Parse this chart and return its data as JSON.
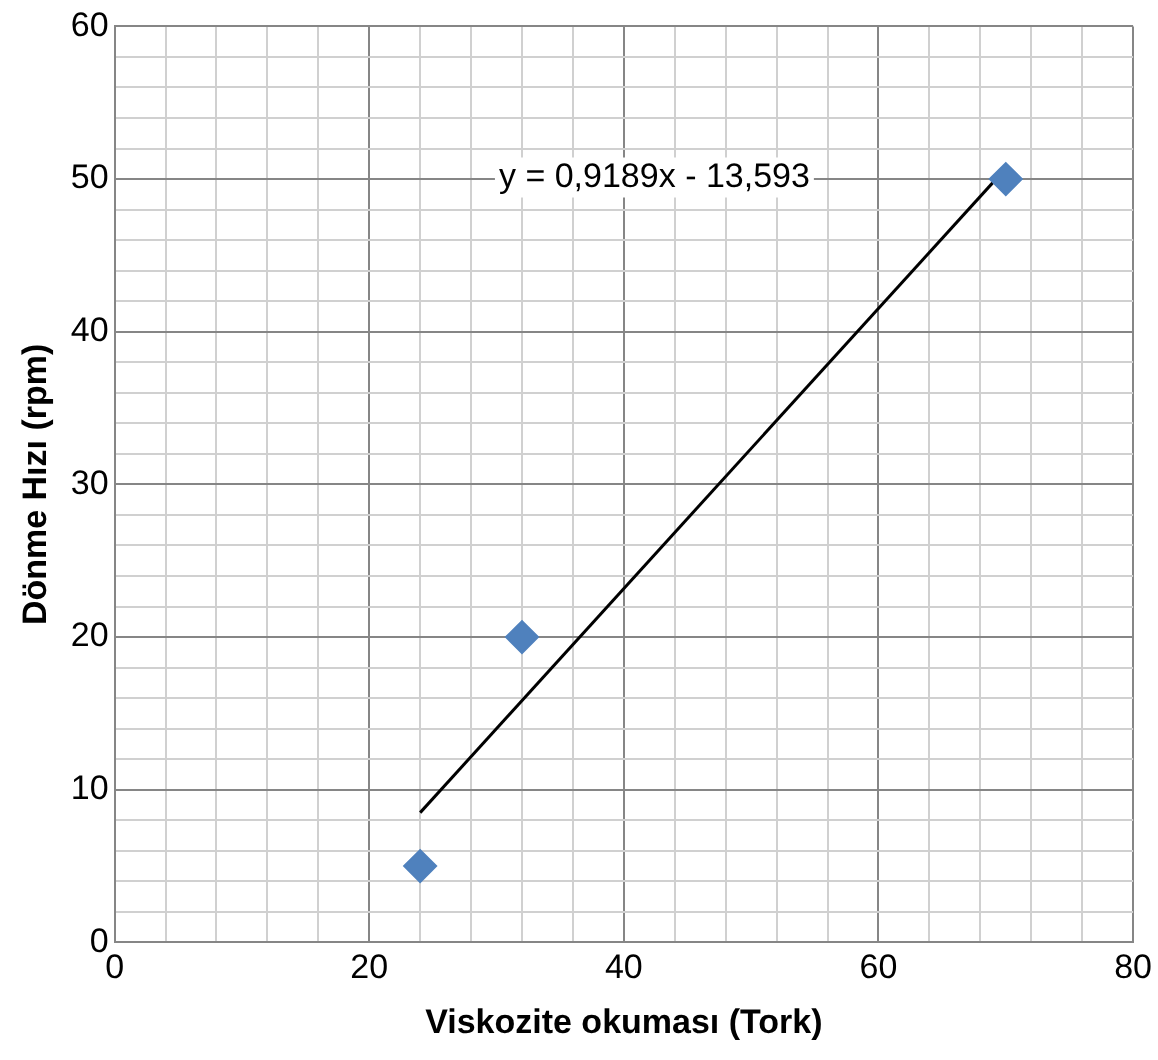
{
  "chart_data": {
    "type": "scatter",
    "xlabel": "Viskozite okuması (Tork)",
    "ylabel": "Dönme Hızı (rpm)",
    "xlim": [
      0,
      80
    ],
    "xticks": [
      0,
      {
        "value": 4,
        "label": null
      },
      {
        "value": 8,
        "label": null
      },
      {
        "value": 12,
        "label": null
      },
      {
        "value": 16,
        "label": null
      },
      20,
      {
        "value": 24,
        "label": null
      },
      {
        "value": 28,
        "label": null
      },
      {
        "value": 32,
        "label": null
      },
      {
        "value": 36,
        "label": null
      },
      40,
      {
        "value": 44,
        "label": null
      },
      {
        "value": 48,
        "label": null
      },
      {
        "value": 52,
        "label": null
      },
      {
        "value": 56,
        "label": null
      },
      60,
      {
        "value": 64,
        "label": null
      },
      {
        "value": 68,
        "label": null
      },
      {
        "value": 72,
        "label": null
      },
      {
        "value": 76,
        "label": null
      },
      80
    ],
    "ylim": [
      0,
      60
    ],
    "yticks": [
      0,
      {
        "value": 2,
        "label": null
      },
      {
        "value": 4,
        "label": null
      },
      {
        "value": 6,
        "label": null
      },
      {
        "value": 8,
        "label": null
      },
      10,
      {
        "value": 12,
        "label": null
      },
      {
        "value": 14,
        "label": null
      },
      {
        "value": 16,
        "label": null
      },
      {
        "value": 18,
        "label": null
      },
      20,
      {
        "value": 22,
        "label": null
      },
      {
        "value": 24,
        "label": null
      },
      {
        "value": 26,
        "label": null
      },
      {
        "value": 28,
        "label": null
      },
      30,
      {
        "value": 32,
        "label": null
      },
      {
        "value": 34,
        "label": null
      },
      {
        "value": 36,
        "label": null
      },
      {
        "value": 38,
        "label": null
      },
      40,
      {
        "value": 42,
        "label": null
      },
      {
        "value": 44,
        "label": null
      },
      {
        "value": 46,
        "label": null
      },
      {
        "value": 48,
        "label": null
      },
      50,
      {
        "value": 52,
        "label": null
      },
      {
        "value": 54,
        "label": null
      },
      {
        "value": 56,
        "label": null
      },
      {
        "value": 58,
        "label": null
      },
      60
    ],
    "grid": true,
    "series": [
      {
        "type": "scatter",
        "x": [
          24,
          32,
          70
        ],
        "values": [
          5,
          20,
          50
        ],
        "color": "#4f81bd",
        "marker": "diamond"
      },
      {
        "type": "line",
        "x": [
          24,
          70
        ],
        "values": [
          8.5,
          50.7
        ],
        "color": "#000000",
        "marker": "none"
      }
    ],
    "annotations": [
      "y = 0,9189x - 13,593"
    ]
  }
}
